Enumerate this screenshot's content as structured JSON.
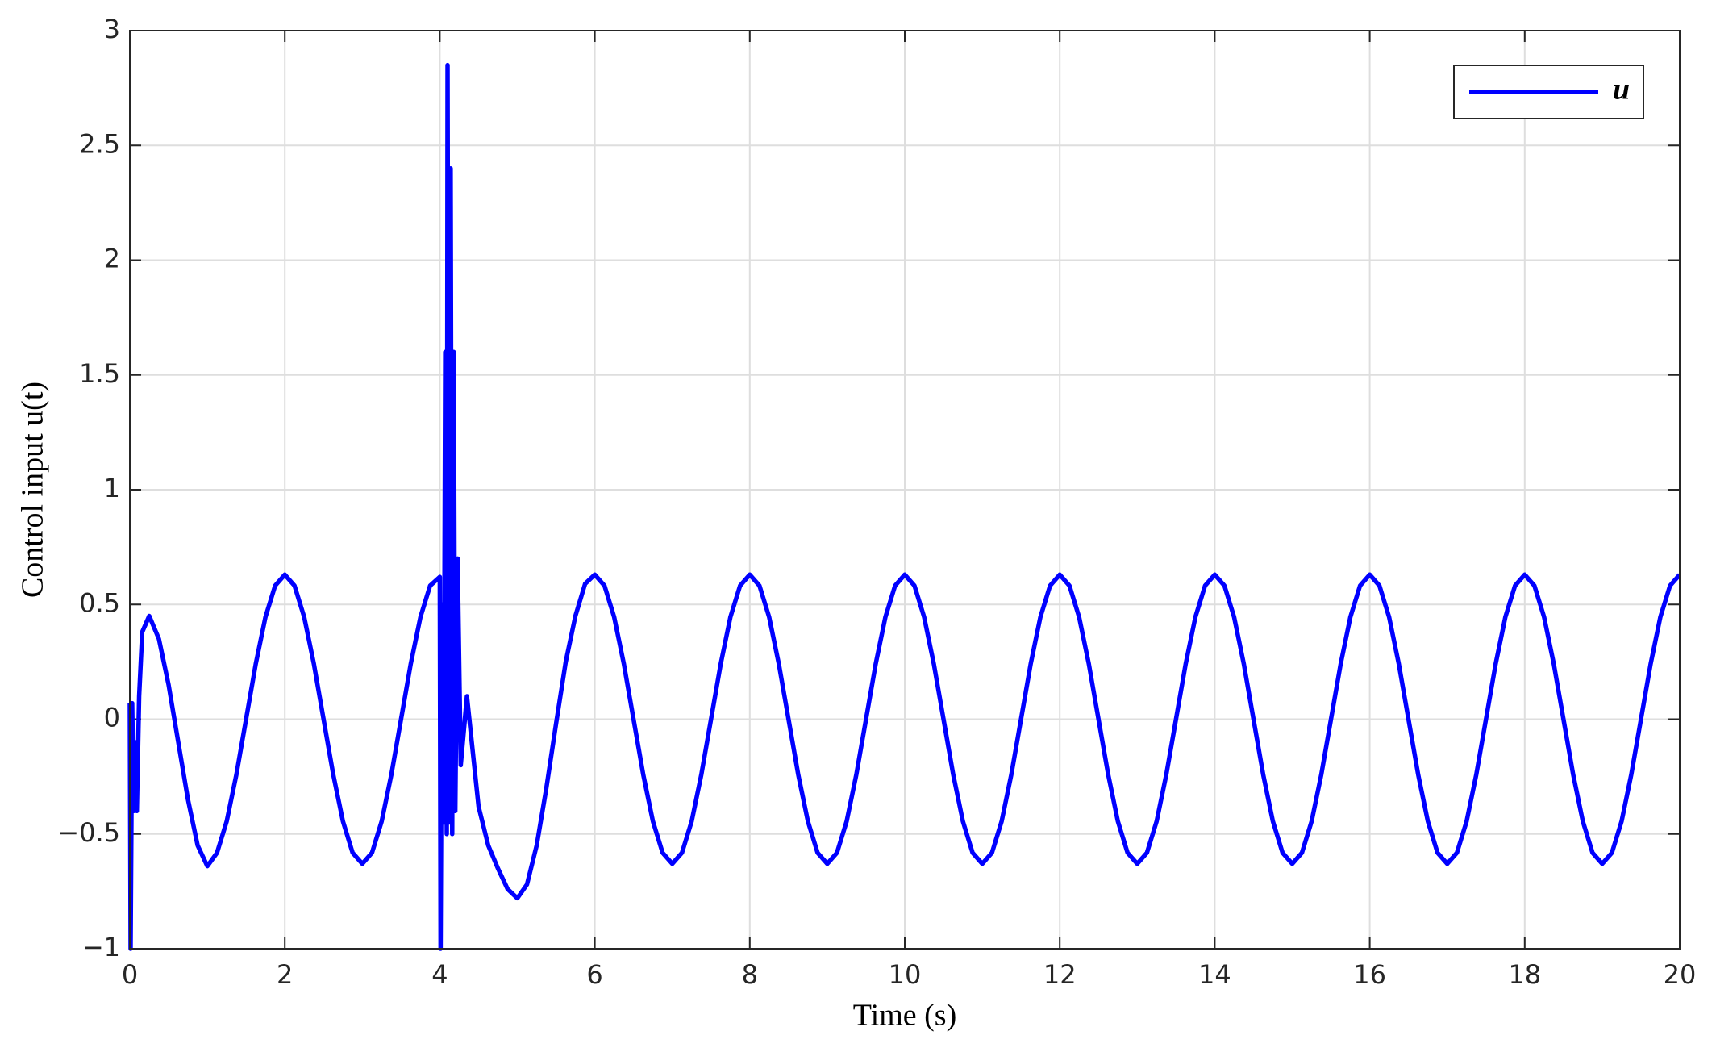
{
  "chart_data": {
    "type": "line",
    "xlabel": "Time (s)",
    "ylabel": "Control input u(t)",
    "xlim": [
      0,
      20
    ],
    "ylim": [
      -1,
      3
    ],
    "xticks": [
      0,
      2,
      4,
      6,
      8,
      10,
      12,
      14,
      16,
      18,
      20
    ],
    "yticks": [
      {
        "value": -1,
        "label": "−1"
      },
      {
        "value": -0.5,
        "label": "−0.5"
      },
      0,
      0.5,
      1,
      1.5,
      2,
      2.5,
      3
    ],
    "grid": true,
    "legend": "upper right",
    "x": [
      0,
      0.01,
      0.03,
      0.05,
      0.07,
      0.09,
      0.12,
      0.16,
      0.25,
      0.375,
      0.5,
      0.625,
      0.75,
      0.875,
      1.0,
      1.125,
      1.25,
      1.375,
      1.5,
      1.625,
      1.75,
      1.875,
      2,
      2.125,
      2.25,
      2.375,
      2.5,
      2.625,
      2.75,
      2.875,
      3,
      3.125,
      3.25,
      3.375,
      3.5,
      3.625,
      3.75,
      3.875,
      4.0,
      4.01,
      4.03,
      4.05,
      4.07,
      4.09,
      4.1,
      4.12,
      4.14,
      4.16,
      4.18,
      4.2,
      4.23,
      4.27,
      4.35,
      4.5,
      4.625,
      4.75,
      4.875,
      5.0,
      5.125,
      5.25,
      5.375,
      5.5,
      5.625,
      5.75,
      5.875,
      6,
      6.125,
      6.25,
      6.375,
      6.5,
      6.625,
      6.75,
      6.875,
      7,
      7.125,
      7.25,
      7.375,
      7.5,
      7.625,
      7.75,
      7.875,
      8,
      8.125,
      8.25,
      8.375,
      8.5,
      8.625,
      8.75,
      8.875,
      9,
      9.125,
      9.25,
      9.375,
      9.5,
      9.625,
      9.75,
      9.875,
      10,
      10.125,
      10.25,
      10.375,
      10.5,
      10.625,
      10.75,
      10.875,
      11,
      11.125,
      11.25,
      11.375,
      11.5,
      11.625,
      11.75,
      11.875,
      12,
      12.125,
      12.25,
      12.375,
      12.5,
      12.625,
      12.75,
      12.875,
      13,
      13.125,
      13.25,
      13.375,
      13.5,
      13.625,
      13.75,
      13.875,
      14,
      14.125,
      14.25,
      14.375,
      14.5,
      14.625,
      14.75,
      14.875,
      15,
      15.125,
      15.25,
      15.375,
      15.5,
      15.625,
      15.75,
      15.875,
      16,
      16.125,
      16.25,
      16.375,
      16.5,
      16.625,
      16.75,
      16.875,
      17,
      17.125,
      17.25,
      17.375,
      17.5,
      17.625,
      17.75,
      17.875,
      18,
      18.125,
      18.25,
      18.375,
      18.5,
      18.625,
      18.75,
      18.875,
      19,
      19.125,
      19.25,
      19.375,
      19.5,
      19.625,
      19.75,
      19.875,
      20
    ],
    "series": [
      {
        "name": "u",
        "color": "#0000ff",
        "values": [
          0.07,
          -1,
          0.07,
          -0.4,
          -0.1,
          -0.4,
          0.1,
          0.38,
          0.45,
          0.35,
          0.15,
          -0.1,
          -0.35,
          -0.55,
          -0.64,
          -0.582,
          -0.445,
          -0.241,
          0,
          0.241,
          0.445,
          0.582,
          0.63,
          0.582,
          0.445,
          0.241,
          0,
          -0.241,
          -0.445,
          -0.582,
          -0.63,
          -0.582,
          -0.445,
          -0.241,
          0,
          0.241,
          0.445,
          0.582,
          0.62,
          -1,
          0.5,
          -0.45,
          1.6,
          -0.5,
          2.85,
          -0.45,
          2.4,
          -0.5,
          1.6,
          -0.4,
          0.7,
          -0.2,
          0.1,
          -0.38,
          -0.55,
          -0.65,
          -0.74,
          -0.78,
          -0.72,
          -0.55,
          -0.3,
          -0.02,
          0.25,
          0.45,
          0.59,
          0.63,
          0.582,
          0.445,
          0.241,
          0,
          -0.241,
          -0.445,
          -0.582,
          -0.63,
          -0.582,
          -0.445,
          -0.241,
          0,
          0.241,
          0.445,
          0.582,
          0.63,
          0.582,
          0.445,
          0.241,
          0,
          -0.241,
          -0.445,
          -0.582,
          -0.63,
          -0.582,
          -0.445,
          -0.241,
          0,
          0.241,
          0.445,
          0.582,
          0.63,
          0.582,
          0.445,
          0.241,
          0,
          -0.241,
          -0.445,
          -0.582,
          -0.63,
          -0.582,
          -0.445,
          -0.241,
          0,
          0.241,
          0.445,
          0.582,
          0.63,
          0.582,
          0.445,
          0.241,
          0,
          -0.241,
          -0.445,
          -0.582,
          -0.63,
          -0.582,
          -0.445,
          -0.241,
          0,
          0.241,
          0.445,
          0.582,
          0.63,
          0.582,
          0.445,
          0.241,
          0,
          -0.241,
          -0.445,
          -0.582,
          -0.63,
          -0.582,
          -0.445,
          -0.241,
          0,
          0.241,
          0.445,
          0.582,
          0.63,
          0.582,
          0.445,
          0.241,
          0,
          -0.241,
          -0.445,
          -0.582,
          -0.63,
          -0.582,
          -0.445,
          -0.241,
          0,
          0.241,
          0.445,
          0.582,
          0.63,
          0.582,
          0.445,
          0.241,
          0,
          -0.241,
          -0.445,
          -0.582,
          -0.63,
          -0.582,
          -0.445,
          -0.241,
          0,
          0.241,
          0.445,
          0.582,
          0.63
        ]
      }
    ]
  }
}
